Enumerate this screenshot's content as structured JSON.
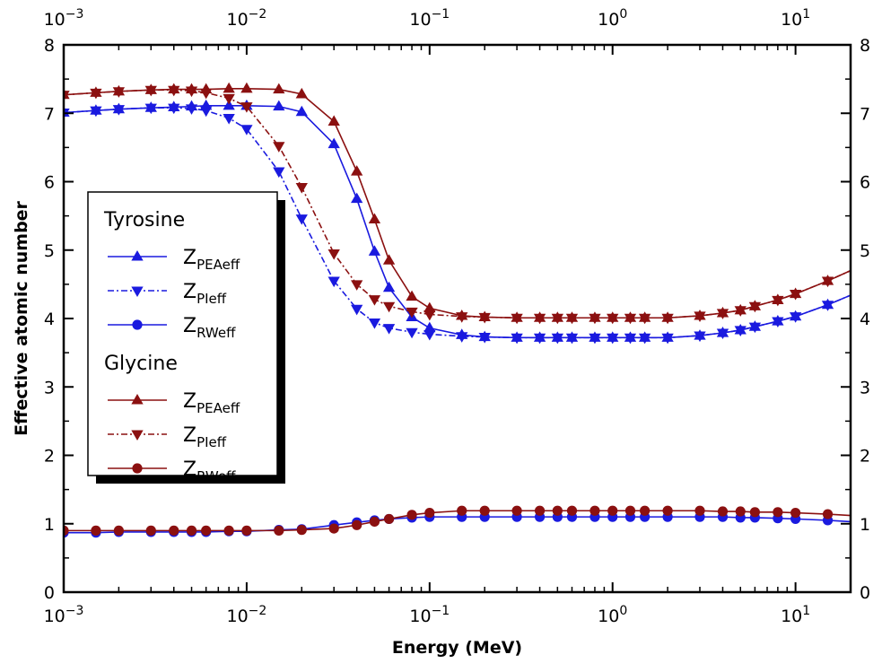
{
  "chart_data": {
    "type": "line",
    "x_scale": "log",
    "xlim": [
      0.001,
      20
    ],
    "ylim": [
      0,
      8
    ],
    "xlabel": "Energy (MeV)",
    "ylabel": "Effective atomic number",
    "x_tick_labels": [
      {
        "base": "10",
        "exp": "−3"
      },
      {
        "base": "10",
        "exp": "−2"
      },
      {
        "base": "10",
        "exp": "−1"
      },
      {
        "base": "10",
        "exp": "0"
      },
      {
        "base": "10",
        "exp": "1"
      }
    ],
    "y_tick_labels": [
      "0",
      "1",
      "2",
      "3",
      "4",
      "5",
      "6",
      "7",
      "8"
    ],
    "legend": {
      "groups": [
        {
          "title": "Tyrosine",
          "entries": [
            {
              "main": "Z",
              "sub": "PEAeff"
            },
            {
              "main": "Z",
              "sub": "PIeff"
            },
            {
              "main": "Z",
              "sub": "RWeff"
            }
          ]
        },
        {
          "title": "Glycine",
          "entries": [
            {
              "main": "Z",
              "sub": "PEAeff"
            },
            {
              "main": "Z",
              "sub": "PIeff"
            },
            {
              "main": "Z",
              "sub": "RWeff"
            }
          ]
        }
      ]
    },
    "x": [
      0.001,
      0.0015,
      0.002,
      0.003,
      0.004,
      0.005,
      0.006,
      0.008,
      0.01,
      0.015,
      0.02,
      0.03,
      0.04,
      0.05,
      0.06,
      0.08,
      0.1,
      0.15,
      0.2,
      0.3,
      0.4,
      0.5,
      0.6,
      0.8,
      1.0,
      1.25,
      1.5,
      2.0,
      3.0,
      4.0,
      5.0,
      6.0,
      8.0,
      10.0,
      15.0,
      20.0
    ],
    "series": [
      {
        "name": "Tyrosine Z_PEAeff",
        "material": "Tyrosine",
        "color": "#1a1adf",
        "marker": "triangle-up",
        "dash": "solid",
        "values": [
          7.01,
          7.04,
          7.06,
          7.08,
          7.09,
          7.1,
          7.11,
          7.11,
          7.11,
          7.1,
          7.02,
          6.55,
          5.75,
          4.98,
          4.45,
          4.02,
          3.86,
          3.76,
          3.73,
          3.72,
          3.72,
          3.72,
          3.72,
          3.72,
          3.72,
          3.72,
          3.72,
          3.72,
          3.75,
          3.79,
          3.83,
          3.88,
          3.96,
          4.03,
          4.2,
          4.34
        ]
      },
      {
        "name": "Tyrosine Z_PIeff",
        "material": "Tyrosine",
        "color": "#1a1adf",
        "marker": "triangle-down",
        "dash": "dashed",
        "values": [
          7.01,
          7.04,
          7.06,
          7.08,
          7.08,
          7.07,
          7.04,
          6.93,
          6.77,
          6.15,
          5.46,
          4.55,
          4.14,
          3.94,
          3.86,
          3.8,
          3.77,
          3.74,
          3.73,
          3.72,
          3.72,
          3.72,
          3.72,
          3.72,
          3.72,
          3.72,
          3.72,
          3.72,
          3.75,
          3.79,
          3.83,
          3.88,
          3.96,
          4.03,
          4.2,
          4.34
        ]
      },
      {
        "name": "Tyrosine Z_RWeff",
        "material": "Tyrosine",
        "color": "#1a1adf",
        "marker": "circle",
        "dash": "solid",
        "values": [
          0.87,
          0.87,
          0.88,
          0.88,
          0.88,
          0.88,
          0.88,
          0.89,
          0.89,
          0.91,
          0.92,
          0.98,
          1.02,
          1.05,
          1.07,
          1.09,
          1.1,
          1.1,
          1.1,
          1.1,
          1.1,
          1.1,
          1.1,
          1.1,
          1.1,
          1.1,
          1.1,
          1.1,
          1.1,
          1.1,
          1.09,
          1.09,
          1.08,
          1.07,
          1.05,
          1.03
        ]
      },
      {
        "name": "Glycine Z_PEAeff",
        "material": "Glycine",
        "color": "#8b1010",
        "marker": "triangle-up",
        "dash": "solid",
        "values": [
          7.27,
          7.3,
          7.32,
          7.34,
          7.35,
          7.35,
          7.35,
          7.36,
          7.36,
          7.35,
          7.28,
          6.88,
          6.15,
          5.45,
          4.85,
          4.32,
          4.15,
          4.04,
          4.02,
          4.01,
          4.01,
          4.01,
          4.01,
          4.01,
          4.01,
          4.01,
          4.01,
          4.01,
          4.04,
          4.08,
          4.12,
          4.18,
          4.27,
          4.36,
          4.55,
          4.7
        ]
      },
      {
        "name": "Glycine Z_PIeff",
        "material": "Glycine",
        "color": "#8b1010",
        "marker": "triangle-down",
        "dash": "dashed",
        "values": [
          7.27,
          7.3,
          7.32,
          7.34,
          7.34,
          7.33,
          7.3,
          7.22,
          7.1,
          6.52,
          5.92,
          4.95,
          4.5,
          4.28,
          4.18,
          4.1,
          4.06,
          4.03,
          4.02,
          4.01,
          4.01,
          4.01,
          4.01,
          4.01,
          4.01,
          4.01,
          4.01,
          4.01,
          4.04,
          4.08,
          4.12,
          4.18,
          4.27,
          4.36,
          4.55,
          4.7
        ]
      },
      {
        "name": "Glycine Z_RWeff",
        "material": "Glycine",
        "color": "#8b1010",
        "marker": "circle",
        "dash": "solid",
        "values": [
          0.9,
          0.9,
          0.9,
          0.9,
          0.9,
          0.9,
          0.9,
          0.9,
          0.9,
          0.9,
          0.91,
          0.93,
          0.98,
          1.03,
          1.07,
          1.13,
          1.16,
          1.19,
          1.19,
          1.19,
          1.19,
          1.19,
          1.19,
          1.19,
          1.19,
          1.19,
          1.19,
          1.19,
          1.19,
          1.18,
          1.18,
          1.17,
          1.17,
          1.16,
          1.14,
          1.12
        ]
      }
    ],
    "marker_x": [
      0.001,
      0.0015,
      0.002,
      0.003,
      0.004,
      0.005,
      0.006,
      0.008,
      0.01,
      0.015,
      0.02,
      0.03,
      0.04,
      0.05,
      0.06,
      0.08,
      0.1,
      0.15,
      0.2,
      0.3,
      0.4,
      0.5,
      0.6,
      0.8,
      1.0,
      1.25,
      1.5,
      2.0,
      3.0,
      4.0,
      5.0,
      6.0,
      8.0,
      10.0,
      15.0
    ]
  }
}
